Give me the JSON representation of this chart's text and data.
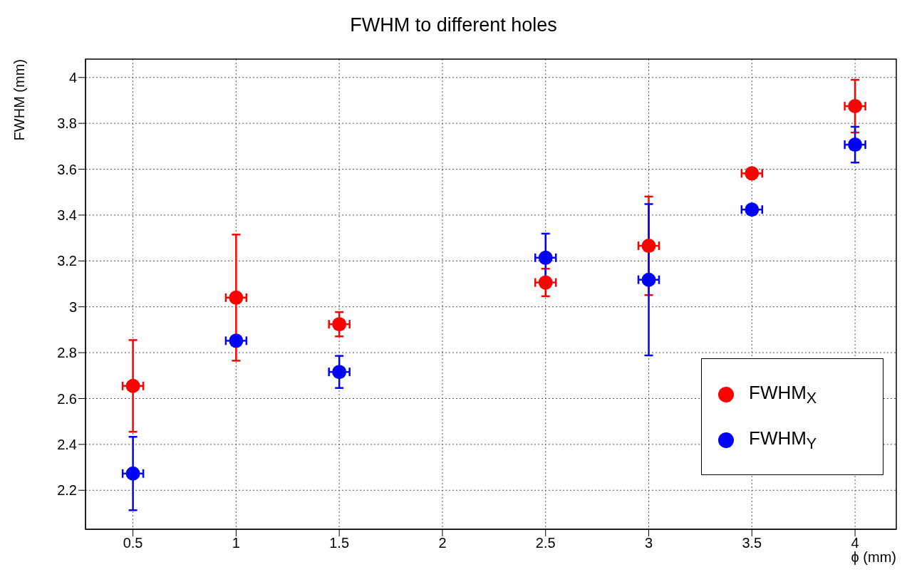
{
  "chart_data": {
    "type": "scatter",
    "title": "FWHM to different holes",
    "xlabel": "ϕ (mm)",
    "ylabel": "FWHM (mm)",
    "x": [
      0.5,
      1,
      1.5,
      2.5,
      3,
      3.5,
      4
    ],
    "series": [
      {
        "name": "FWHM$_{X}$",
        "color": "#ff0000",
        "values": [
          2.655,
          3.04,
          2.924,
          3.106,
          3.266,
          3.582,
          3.875
        ],
        "errors": [
          0.2,
          0.275,
          0.053,
          0.06,
          0.215,
          null,
          0.115
        ],
        "xerrors": [
          0.05,
          0.05,
          0.05,
          0.05,
          0.05,
          0.05,
          0.05
        ]
      },
      {
        "name": "FWHM$_{Y}$",
        "color": "#0000ff",
        "values": [
          2.273,
          2.852,
          2.716,
          3.214,
          3.118,
          3.424,
          3.707
        ],
        "errors": [
          0.16,
          null,
          0.07,
          0.105,
          0.33,
          null,
          0.078
        ],
        "xerrors": [
          0.05,
          0.05,
          0.05,
          0.05,
          0.05,
          0.05,
          0.05
        ]
      }
    ],
    "xlim": [
      0.27,
      4.2
    ],
    "ylim": [
      2.03,
      4.08
    ],
    "xticks": [
      0.5,
      1,
      1.5,
      2,
      2.5,
      3,
      3.5,
      4
    ],
    "yticks": [
      2.2,
      2.4,
      2.6,
      2.8,
      3,
      3.2,
      3.4,
      3.6,
      3.8,
      4
    ],
    "grid": true,
    "legend": "bottom right",
    "marker": "circle"
  }
}
